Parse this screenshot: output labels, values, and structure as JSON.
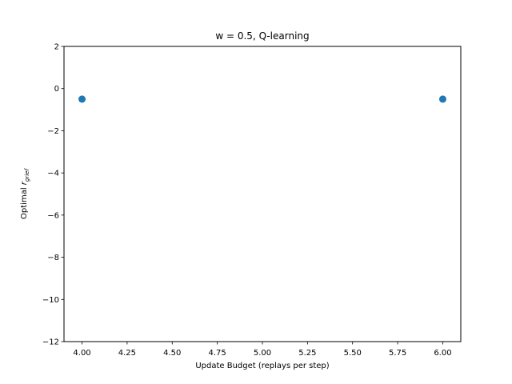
{
  "chart_data": {
    "type": "scatter",
    "title": "w = 0.5, Q-learning",
    "xlabel": "Update Budget (replays per step)",
    "ylabel_prefix": "Optimal ",
    "ylabel_var": "r",
    "ylabel_sub": "grief",
    "xlim": [
      3.9,
      6.1
    ],
    "ylim": [
      -12,
      2
    ],
    "xticks": [
      4.0,
      4.25,
      4.5,
      4.75,
      5.0,
      5.25,
      5.5,
      5.75,
      6.0
    ],
    "xtick_labels": [
      "4.00",
      "4.25",
      "4.50",
      "4.75",
      "5.00",
      "5.25",
      "5.50",
      "5.75",
      "6.00"
    ],
    "yticks": [
      2,
      0,
      -2,
      -4,
      -6,
      -8,
      -10,
      -12
    ],
    "ytick_labels": [
      "2",
      "0",
      "−2",
      "−4",
      "−6",
      "−8",
      "−10",
      "−12"
    ],
    "series": [
      {
        "x": [
          4.0,
          6.0
        ],
        "y": [
          -0.5,
          -0.5
        ],
        "color": "#1f77b4"
      }
    ],
    "grid": false,
    "legend": "none"
  }
}
